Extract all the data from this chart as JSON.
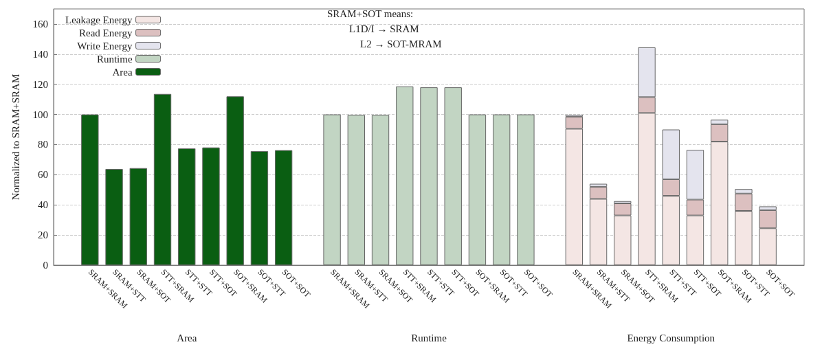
{
  "chart_data": {
    "type": "bar",
    "stacked": true,
    "ylabel": "Normalized to SRAM+SRAM",
    "categories": [
      null,
      "SRAM+SRAM",
      "SRAM+STT",
      "SRAM+SOT",
      "STT+SRAM",
      "STT+STT",
      "STT+SOT",
      "SOT+SRAM",
      "SOT+STT",
      "SOT+SOT",
      null,
      "SRAM+SRAM",
      "SRAM+STT",
      "SRAM+SOT",
      "STT+SRAM",
      "STT+STT",
      "STT+SOT",
      "SOT+SRAM",
      "SOT+STT",
      "SOT+SOT",
      null,
      "SRAM+SRAM",
      "SRAM+STT",
      "SRAM+SOT",
      "STT+SRAM",
      "STT+STT",
      "STT+SOT",
      "SOT+SRAM",
      "SOT+STT",
      "SOT+SOT",
      null
    ],
    "series": [
      {
        "name": "Leakage Energy",
        "color": "#f4e6e4",
        "values": [
          null,
          null,
          null,
          null,
          null,
          null,
          null,
          null,
          null,
          null,
          null,
          null,
          null,
          null,
          null,
          null,
          null,
          null,
          null,
          null,
          null,
          90.5,
          44,
          33,
          101,
          46,
          33,
          82,
          36,
          24.5,
          null
        ]
      },
      {
        "name": "Read Energy",
        "color": "#dcc0c0",
        "values": [
          null,
          null,
          null,
          null,
          null,
          null,
          null,
          null,
          null,
          null,
          null,
          null,
          null,
          null,
          null,
          null,
          null,
          null,
          null,
          null,
          null,
          8,
          8,
          8,
          10.5,
          11,
          10.5,
          11.5,
          11.5,
          12,
          null
        ]
      },
      {
        "name": "Write Energy",
        "color": "#e4e4ee",
        "values": [
          null,
          null,
          null,
          null,
          null,
          null,
          null,
          null,
          null,
          null,
          null,
          null,
          null,
          null,
          null,
          null,
          null,
          null,
          null,
          null,
          null,
          1.2,
          2,
          1.5,
          33,
          33,
          33,
          3,
          3,
          2.5,
          null
        ]
      },
      {
        "name": "Runtime",
        "color": "#c2d5c3",
        "values": [
          null,
          null,
          null,
          null,
          null,
          null,
          null,
          null,
          null,
          null,
          null,
          100,
          99.7,
          99.7,
          118.6,
          118,
          118,
          100,
          100,
          100,
          null,
          null,
          null,
          null,
          null,
          null,
          null,
          null,
          null,
          null,
          null
        ]
      },
      {
        "name": "Area",
        "color": "#0a5e12",
        "values": [
          null,
          100,
          63.8,
          64.4,
          113.6,
          77.5,
          78.1,
          112,
          75.7,
          76.3,
          null,
          null,
          null,
          null,
          null,
          null,
          null,
          null,
          null,
          null,
          null,
          null,
          null,
          null,
          null,
          null,
          null,
          null,
          null,
          null,
          null
        ]
      }
    ],
    "ylim": [
      0,
      170
    ],
    "yticks": [
      0,
      20,
      40,
      60,
      80,
      100,
      120,
      140,
      160
    ],
    "grid": "y",
    "legend": "top left",
    "annotations": [
      "SRAM+SOT means:",
      "L1D/I → SRAM",
      "L2 → SOT-MRAM",
      "Area",
      "Runtime",
      "Energy Consumption"
    ]
  }
}
